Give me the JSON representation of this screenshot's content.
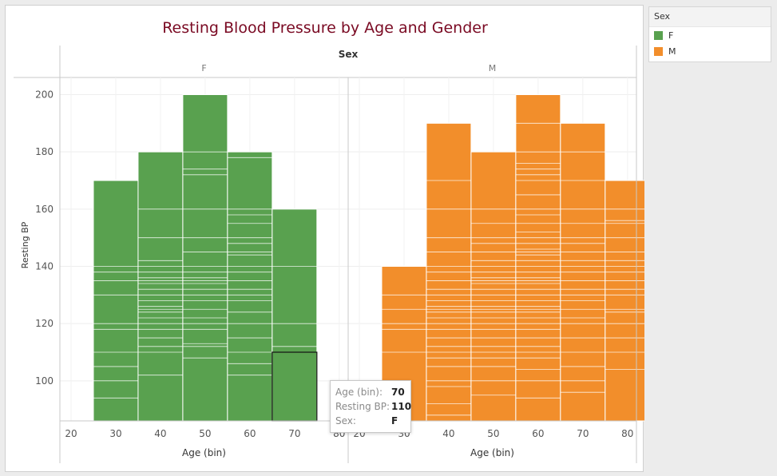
{
  "legend": {
    "title": "Sex",
    "items": [
      {
        "label": "F",
        "color": "#59a14f"
      },
      {
        "label": "M",
        "color": "#f28e2b"
      }
    ]
  },
  "tooltip": {
    "rows": [
      {
        "label": "Age (bin):",
        "value": "70"
      },
      {
        "label": "Resting BP:",
        "value": "110"
      },
      {
        "label": "Sex:",
        "value": "F"
      }
    ]
  },
  "chart_data": {
    "type": "bar",
    "title": "Resting Blood Pressure by Age and Gender",
    "column_header": "Sex",
    "ylabel": "Resting BP",
    "xlabel": "Age (bin)",
    "ylim": [
      86,
      206
    ],
    "yticks": [
      100,
      120,
      140,
      160,
      180,
      200
    ],
    "xlim": [
      17.5,
      82
    ],
    "xticks": [
      20,
      30,
      40,
      50,
      60,
      70,
      80
    ],
    "grid": true,
    "legend_position": "right",
    "panels": [
      {
        "name": "F",
        "color": "#59a14f",
        "bins": [
          {
            "age": 30,
            "max": 170,
            "segments": [
              94,
              100,
              105,
              110,
              118,
              120,
              130,
              135,
              138,
              140
            ]
          },
          {
            "age": 40,
            "max": 180,
            "segments": [
              102,
              110,
              112,
              115,
              118,
              120,
              122,
              124,
              125,
              126,
              128,
              130,
              132,
              134,
              135,
              136,
              138,
              140,
              142,
              150,
              160
            ]
          },
          {
            "age": 50,
            "max": 200,
            "segments": [
              108,
              112,
              113,
              118,
              120,
              122,
              125,
              128,
              130,
              132,
              134,
              135,
              136,
              138,
              140,
              145,
              150,
              160,
              172,
              174,
              180
            ]
          },
          {
            "age": 60,
            "max": 180,
            "segments": [
              102,
              106,
              110,
              115,
              120,
              124,
              128,
              130,
              132,
              135,
              138,
              140,
              144,
              145,
              148,
              150,
              155,
              158,
              160,
              178
            ]
          },
          {
            "age": 70,
            "max": 160,
            "segments": [
              110,
              112,
              120,
              140
            ]
          }
        ],
        "highlight": {
          "age": 70,
          "value": 110
        }
      },
      {
        "name": "M",
        "color": "#f28e2b",
        "bins": [
          {
            "age": 30,
            "max": 140,
            "segments": [
              110,
              118,
              120,
              125,
              130
            ]
          },
          {
            "age": 40,
            "max": 190,
            "segments": [
              88,
              92,
              98,
              100,
              105,
              108,
              110,
              112,
              115,
              118,
              120,
              122,
              124,
              125,
              126,
              128,
              130,
              132,
              135,
              138,
              140,
              145,
              150,
              160,
              170
            ]
          },
          {
            "age": 50,
            "max": 180,
            "segments": [
              95,
              100,
              105,
              108,
              110,
              112,
              115,
              118,
              120,
              122,
              124,
              125,
              126,
              128,
              130,
              132,
              134,
              135,
              136,
              138,
              140,
              142,
              145,
              148,
              150,
              155,
              160
            ]
          },
          {
            "age": 60,
            "max": 200,
            "segments": [
              94,
              100,
              104,
              108,
              110,
              112,
              115,
              118,
              120,
              122,
              124,
              125,
              126,
              128,
              130,
              132,
              134,
              135,
              136,
              138,
              140,
              142,
              144,
              145,
              146,
              148,
              150,
              152,
              155,
              158,
              160,
              165,
              170,
              172,
              174,
              176,
              180,
              190
            ]
          },
          {
            "age": 70,
            "max": 190,
            "segments": [
              96,
              100,
              105,
              110,
              115,
              120,
              122,
              125,
              128,
              130,
              132,
              135,
              138,
              140,
              142,
              145,
              148,
              150,
              155,
              160,
              170,
              180
            ]
          },
          {
            "age": 80,
            "max": 170,
            "segments": [
              104,
              110,
              115,
              120,
              124,
              125,
              130,
              132,
              135,
              138,
              140,
              142,
              145,
              150,
              155,
              156,
              160
            ]
          }
        ]
      }
    ]
  }
}
